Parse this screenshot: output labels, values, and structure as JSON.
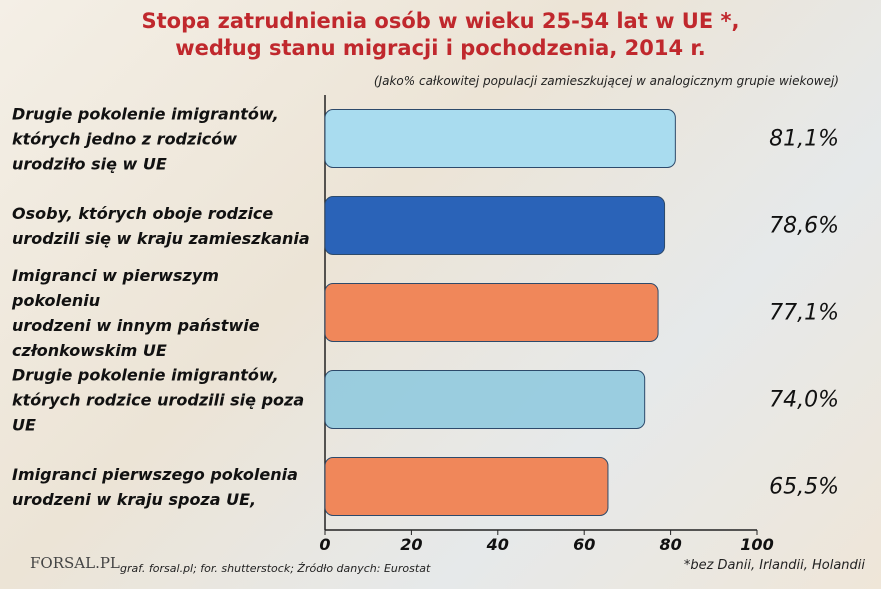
{
  "chart_data": {
    "type": "barh",
    "title": "Stopa zatrudnienia osób w wieku 25-54 lat w UE *,\nwedług stanu migracji i pochodzenia, 2014 r.",
    "subtitle": "(Jako% całkowitej populacji zamieszkującej w analogicznym grupie wiekowej)",
    "categories": [
      "Drugie pokolenie imigrantów,\nktórych jedno z rodziców\nurodziło się w UE",
      "Osoby, których oboje rodzice\nurodzili się w kraju zamieszkania",
      "Imigranci w pierwszym pokoleniu\nurodzeni w innym państwie\nczłonkowskim UE",
      "Drugie pokolenie imigrantów,\nktórych rodzice urodzili się poza UE",
      "Imigranci pierwszego pokolenia\nurodzeni w kraju spoza UE,"
    ],
    "values": [
      81.1,
      78.6,
      77.1,
      74.0,
      65.5
    ],
    "value_labels": [
      "81,1%",
      "78,6%",
      "77,1%",
      "74,0%",
      "65,5%"
    ],
    "colors": [
      "#a9dcef",
      "#2a63b8",
      "#f0875a",
      "#8cc8de",
      "#f0875a"
    ],
    "xlim": [
      0,
      100
    ],
    "xticks": [
      0,
      20,
      40,
      60,
      80,
      100
    ],
    "source": "graf. forsal.pl; for. shutterstock;  Źródło danych:  Eurostat",
    "footnote": "*bez Danii, Irlandii, Holandii",
    "logo": "FORSAL.PL"
  }
}
